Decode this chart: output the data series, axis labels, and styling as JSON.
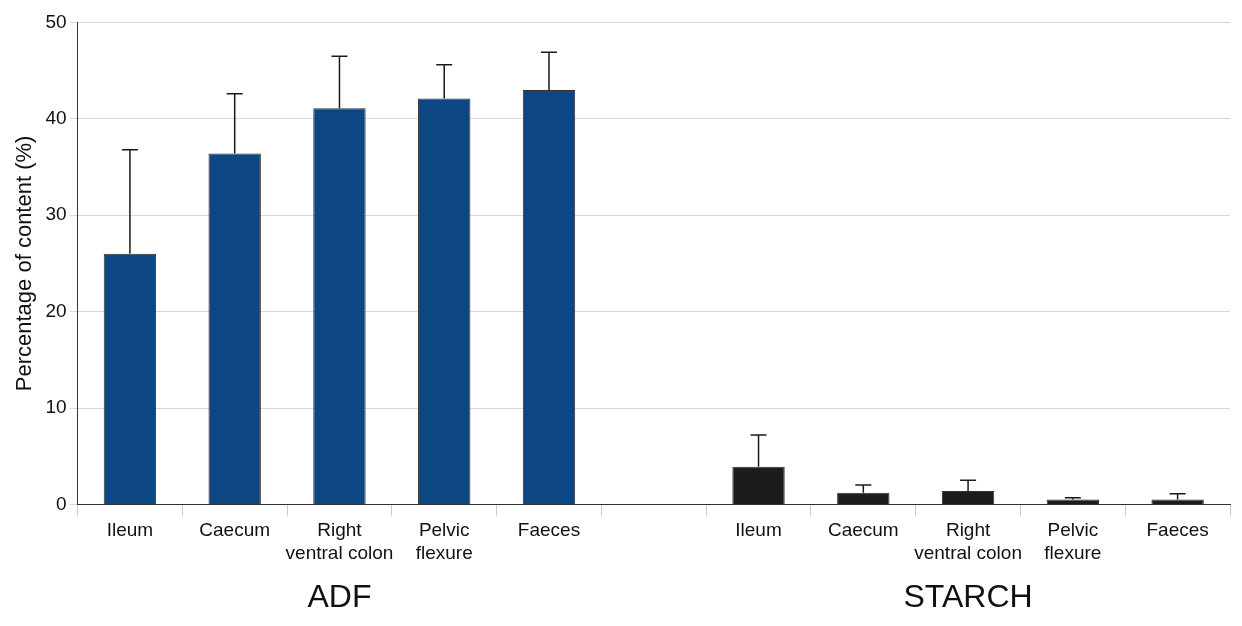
{
  "chart_data": {
    "type": "bar",
    "ylabel": "Percentage of content (%)",
    "categories": [
      "Ileum",
      "Caecum",
      "Right\nventral colon",
      "Pelvic\nflexure",
      "Faeces",
      null,
      "Ileum",
      "Caecum",
      "Right\nventral colon",
      "Pelvic\nflexure",
      "Faeces"
    ],
    "values": [
      26,
      36.4,
      41.1,
      42.1,
      43.0,
      null,
      3.9,
      1.2,
      1.4,
      0.5,
      0.5
    ],
    "errors": [
      [
        26,
        36.8
      ],
      [
        36.4,
        42.6
      ],
      [
        41.1,
        46.5
      ],
      [
        42.1,
        45.6
      ],
      [
        43.0,
        46.9
      ],
      null,
      [
        3.9,
        7.2
      ],
      [
        1.2,
        2.0
      ],
      [
        1.4,
        2.5
      ],
      [
        0.5,
        0.7
      ],
      [
        0.5,
        1.1
      ]
    ],
    "colors": [
      "#0c4784",
      "#0c4784",
      "#0c4784",
      "#0c4784",
      "#0c4784",
      "#0c4784",
      "#1c1c1c",
      "#1c1c1c",
      "#1c1c1c",
      "#1c1c1c",
      "#1c1c1c"
    ],
    "ylim": [
      0,
      50
    ],
    "yticks": [
      0,
      10,
      20,
      30,
      40,
      50
    ],
    "grid": "y",
    "legend": false,
    "annotations": [
      "ADF",
      "STARCH"
    ]
  }
}
